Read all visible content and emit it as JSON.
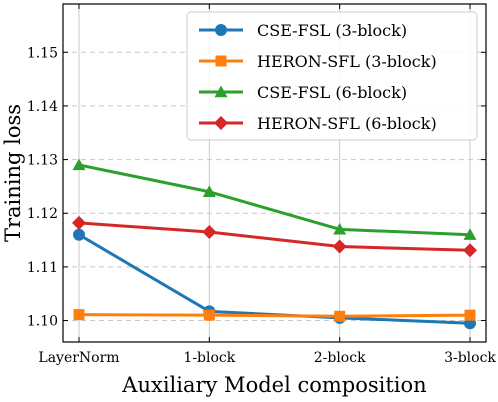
{
  "chart_data": {
    "type": "line",
    "categories": [
      "LayerNorm",
      "1-block",
      "2-block",
      "3-block"
    ],
    "xlabel": "Auxiliary Model composition",
    "ylabel": "Training loss",
    "ylim": [
      1.096,
      1.159
    ],
    "yticks": [
      "1.10",
      "1.11",
      "1.12",
      "1.13",
      "1.14",
      "1.15"
    ],
    "grid": true,
    "legend_position": "top-right",
    "series": [
      {
        "name": "CSE-FSL (3-block)",
        "values": [
          1.116,
          1.1017,
          1.1005,
          1.0995
        ],
        "color": "#1f77b4",
        "marker": "circle"
      },
      {
        "name": "HERON-SFL (3-block)",
        "values": [
          1.1011,
          1.101,
          1.1008,
          1.101
        ],
        "color": "#ff7f0e",
        "marker": "square"
      },
      {
        "name": "CSE-FSL (6-block)",
        "values": [
          1.129,
          1.124,
          1.117,
          1.116
        ],
        "color": "#2ca02c",
        "marker": "triangle"
      },
      {
        "name": "HERON-SFL (6-block)",
        "values": [
          1.1182,
          1.1165,
          1.1138,
          1.1131
        ],
        "color": "#d62728",
        "marker": "diamond"
      }
    ]
  }
}
